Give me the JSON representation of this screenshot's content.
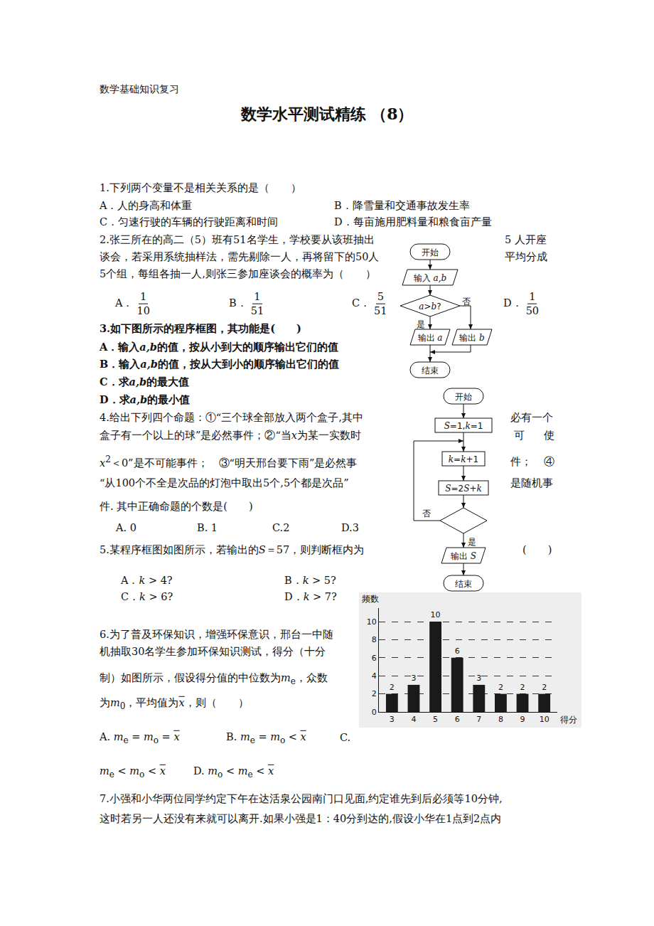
{
  "document": {
    "header": "数学基础知识复习",
    "title": "数学水平测试精练 （8）",
    "questions": [
      {
        "items": [
          "1.下列两个变量不是相关关系的是（　　）",
          "A．人的身高和体重",
          "B．降雪量和交通事故发生率",
          "C．匀速行驶的车辆的行驶距离和时间",
          "D．每亩施用肥料量和粮食亩产量"
        ]
      },
      {
        "items": [
          "2.张三所在的高二（5）班有51名学生，学校要从该班抽出",
          "5 人开座",
          "谈会，若采用系统抽样法，需先剔除一人，再将留下的50人",
          "平均分成",
          "5个组，每组各抽一人,则张三参加座谈会的概率为（　　）",
          [
            "A．",
            {
              "frac": [
                "1",
                "10"
              ]
            }
          ],
          [
            "B．",
            {
              "frac": [
                "1",
                "51"
              ]
            }
          ],
          [
            "C．",
            {
              "frac": [
                "5",
                "51"
              ]
            }
          ],
          [
            "D．",
            {
              "frac": [
                "1",
                "50"
              ]
            }
          ]
        ]
      },
      {
        "items": [
          "3.如下图所示的程序框图，其功能是(　　)",
          [
            "A．输入",
            {
              "i": "a,b"
            },
            "的值，按从小到大的顺序输出它们的值"
          ],
          [
            "B．输入",
            {
              "i": "a,b"
            },
            "的值，按从大到小的顺序输出它们的值"
          ],
          [
            "C．求",
            {
              "i": "a,b"
            },
            "的最大值"
          ],
          [
            "D．求",
            {
              "i": "a,b"
            },
            "的最小值"
          ]
        ]
      },
      {
        "items": [
          "4.给出下列四个命题：①“三个球全部放入两个盒子,其中",
          "必有一个",
          [
            "盒子有一个以上的球”是必然事件；②“当",
            {
              "i": "x"
            },
            "为某一实数时"
          ],
          "可",
          "使",
          [
            {
              "i": "x"
            },
            {
              "sup": "2"
            },
            "＜0”是不可能事件；　③“明天邢台要下雨”是必然事"
          ],
          "件；",
          "④",
          "“从100个不全是次品的灯泡中取出5个,5个都是次品”",
          "是随机事",
          "件. 其中正确命题的个数是(　　)",
          "A. 0",
          "B. 1",
          "C.2",
          "D.3"
        ]
      },
      {
        "items": [
          [
            "5.某程序框图如图所示，若输出的",
            {
              "i": "S"
            },
            "＝57，则判断框内为"
          ],
          "(　　)",
          [
            "A．",
            {
              "i": "k"
            },
            " > 4?"
          ],
          [
            "B．",
            {
              "i": "k"
            },
            " > 5?"
          ],
          [
            "C．",
            {
              "i": "k"
            },
            " > 6?"
          ],
          [
            "D．",
            {
              "i": "k"
            },
            " > 7?"
          ]
        ]
      },
      {
        "items": [
          "6.为了普及环保知识，增强环保意识，邢台一中随",
          "机抽取30名学生参加环保知识测试，得分（十分",
          [
            "制）如图所示，假设得分值的中位数为",
            {
              "i": "m"
            },
            {
              "sub": "e"
            },
            "，众数"
          ],
          [
            "为",
            {
              "i": "m"
            },
            {
              "sub": "0"
            },
            "，平均值为",
            {
              "bar": "x"
            },
            "，则（　　）"
          ],
          [
            "A. ",
            {
              "i": "m"
            },
            {
              "sub": "e"
            },
            " = ",
            {
              "i": "m"
            },
            {
              "sub": "o"
            },
            " = ",
            {
              "bar": "x"
            }
          ],
          [
            "B. ",
            {
              "i": "m"
            },
            {
              "sub": "e"
            },
            " = ",
            {
              "i": "m"
            },
            {
              "sub": "o"
            },
            " < ",
            {
              "bar": "x"
            }
          ],
          "C.",
          [
            {
              "i": "m"
            },
            {
              "sub": "e"
            },
            " < ",
            {
              "i": "m"
            },
            {
              "sub": "o"
            },
            " < ",
            {
              "bar": "x"
            }
          ],
          [
            "D. ",
            {
              "i": "m"
            },
            {
              "sub": "o"
            },
            " < ",
            {
              "i": "m"
            },
            {
              "sub": "e"
            },
            " < ",
            {
              "bar": "x"
            }
          ]
        ]
      },
      {
        "items": [
          "7.小强和小华两位同学约定下午在达活泉公园南门口见面,约定谁先到后必须等10分钟,",
          "这时若另一人还没有来就可以离开.如果小强是1：40分到达的,假设小华在1点到2点内"
        ]
      }
    ],
    "flowchart1": {
      "nodes": [
        "开始",
        [
          "输入 ",
          {
            "i": "a,b"
          }
        ],
        [
          {
            "i": "a"
          },
          ">",
          {
            "i": "b"
          },
          "?"
        ],
        [
          "输出 ",
          {
            "i": "a"
          }
        ],
        [
          "输出 ",
          {
            "i": "b"
          }
        ],
        "结束"
      ],
      "yes": "是",
      "no": "否"
    },
    "flowchart2": {
      "nodes": [
        "开始",
        [
          {
            "i": "S"
          },
          "=1,",
          {
            "i": "k"
          },
          "=1"
        ],
        [
          {
            "i": "k"
          },
          "=",
          {
            "i": "k"
          },
          "+1"
        ],
        [
          {
            "i": "S"
          },
          "=2",
          {
            "i": "S"
          },
          "+",
          {
            "i": "k"
          }
        ],
        [
          "输出 ",
          {
            "i": "S"
          }
        ],
        "结束"
      ],
      "yes": "是",
      "no": "否"
    }
  },
  "chart_data": {
    "type": "bar",
    "xlabel": "得分",
    "ylabel": "频数",
    "x": [
      3,
      4,
      5,
      6,
      7,
      8,
      9,
      10
    ],
    "values": [
      2,
      3,
      10,
      6,
      3,
      2,
      2,
      2
    ],
    "color": "#1a1a1a",
    "xlim": [
      2.4,
      10.6
    ],
    "xticks": [
      3,
      4,
      5,
      6,
      7,
      8,
      9,
      10
    ],
    "ylim": [
      0,
      11.5
    ],
    "yticks": [
      0,
      2,
      4,
      6,
      8,
      10
    ],
    "grid": true,
    "data_labels": true
  }
}
